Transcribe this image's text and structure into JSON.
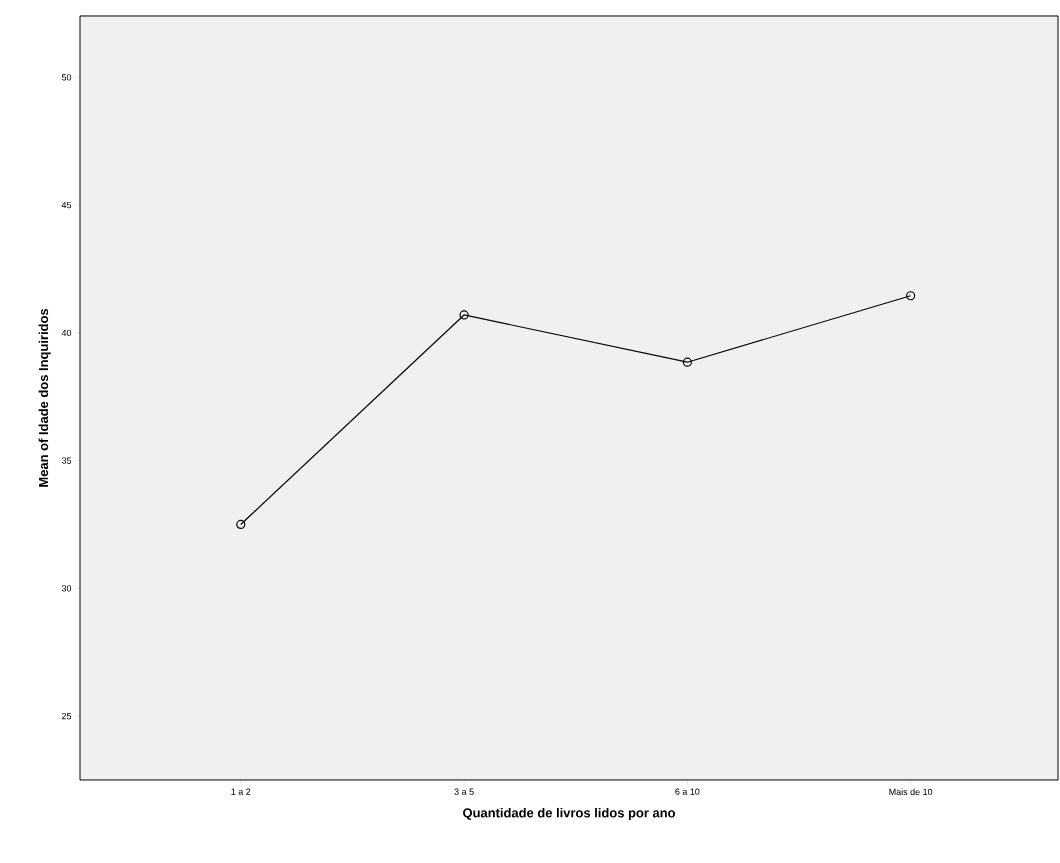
{
  "chart_data": {
    "type": "line",
    "xlabel": "Quantidade de livros lidos por ano",
    "ylabel": "Mean of Idade dos Inquiridos",
    "categories": [
      "1 a 2",
      "3 a 5",
      "6 a 10",
      "Mais de 10"
    ],
    "values": [
      32.5,
      40.7,
      38.85,
      41.45
    ],
    "color": "#000000",
    "marker": "circle",
    "line_style": "solid",
    "ylim": [
      22.5,
      52.4
    ],
    "yticks": [
      25,
      30,
      35,
      40,
      45,
      50
    ]
  }
}
